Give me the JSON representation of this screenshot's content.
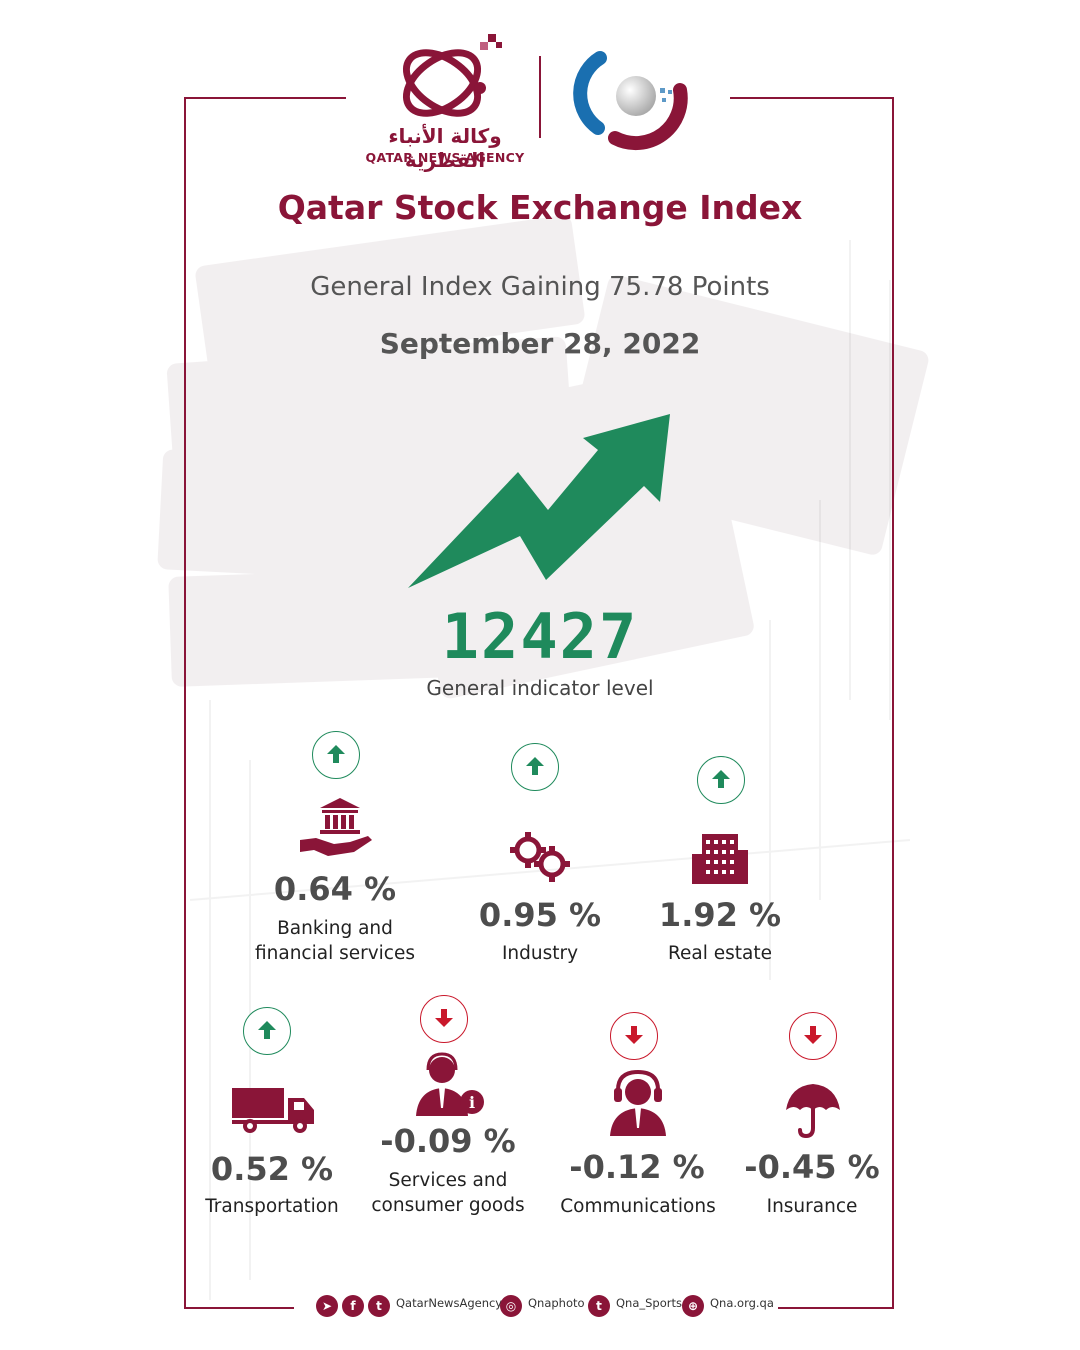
{
  "header": {
    "agency_arabic": "وكالة الأنباء القطرية",
    "agency_english": "QATAR NEWS AGENCY"
  },
  "title": "Qatar Stock Exchange Index",
  "subtitle": "General Index Gaining 75.78 Points",
  "date": "September 28, 2022",
  "index": {
    "value": "12427",
    "label": "General indicator level"
  },
  "colors": {
    "brand": "#8a1538",
    "up": "#1f8a5c",
    "down": "#c9182b"
  },
  "sectors": [
    {
      "pct": "0.64 %",
      "label_line1": "Banking and",
      "label_line2": "financial services",
      "direction": "up",
      "icon": "bank-hand-icon"
    },
    {
      "pct": "0.95 %",
      "label_line1": "Industry",
      "label_line2": "",
      "direction": "up",
      "icon": "gears-icon"
    },
    {
      "pct": "1.92 %",
      "label_line1": "Real estate",
      "label_line2": "",
      "direction": "up",
      "icon": "building-icon"
    },
    {
      "pct": "0.52 %",
      "label_line1": "Transportation",
      "label_line2": "",
      "direction": "up",
      "icon": "truck-icon"
    },
    {
      "pct": "-0.09 %",
      "label_line1": "Services and",
      "label_line2": "consumer goods",
      "direction": "down",
      "icon": "service-agent-icon"
    },
    {
      "pct": "-0.12 %",
      "label_line1": "Communications",
      "label_line2": "",
      "direction": "down",
      "icon": "headset-icon"
    },
    {
      "pct": "-0.45 %",
      "label_line1": "Insurance",
      "label_line2": "",
      "direction": "down",
      "icon": "umbrella-icon"
    }
  ],
  "footer": {
    "handle1": "QatarNewsAgency",
    "handle2": "Qnaphoto",
    "handle3": "Qna_Sports",
    "handle4": "Qna.org.qa"
  }
}
